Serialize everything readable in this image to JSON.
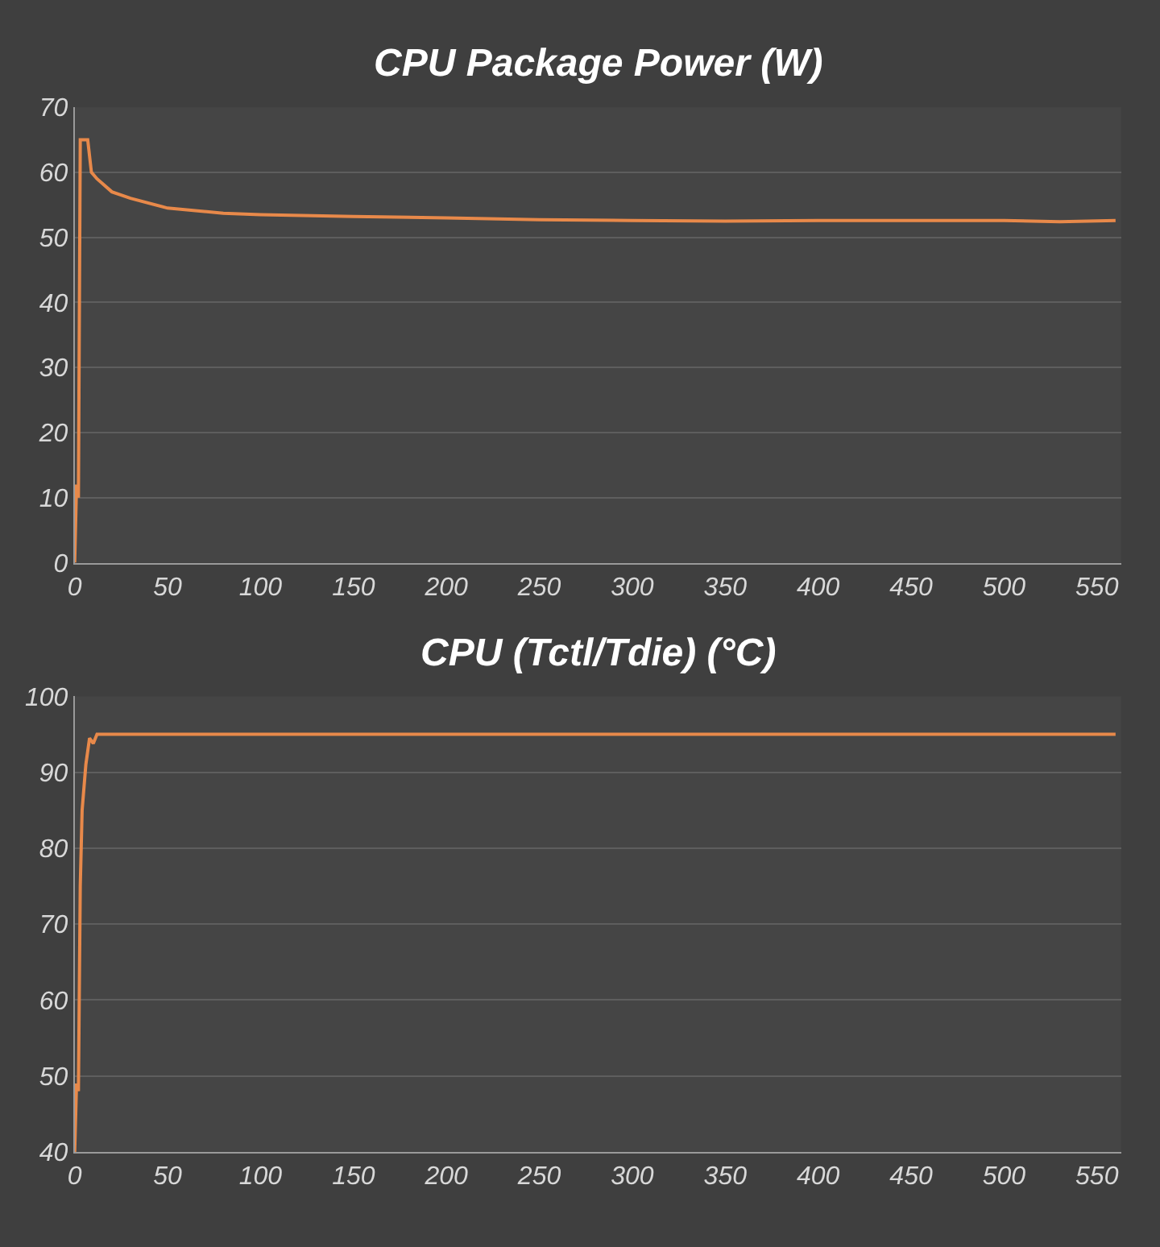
{
  "chart_data": [
    {
      "type": "line",
      "title": "CPU Package Power (W)",
      "x": [
        0,
        1,
        2,
        3,
        7,
        9,
        12,
        20,
        30,
        50,
        80,
        100,
        150,
        200,
        250,
        300,
        350,
        400,
        450,
        500,
        530,
        560
      ],
      "series": [
        {
          "color": "#e8894a",
          "values": [
            0,
            12,
            10,
            65,
            65,
            60,
            59,
            57,
            56,
            54.5,
            53.7,
            53.5,
            53.2,
            53,
            52.7,
            52.6,
            52.5,
            52.6,
            52.6,
            52.6,
            52.4,
            52.6
          ]
        }
      ],
      "xlim": [
        0,
        563
      ],
      "xticks": [
        0,
        50,
        100,
        150,
        200,
        250,
        300,
        350,
        400,
        450,
        500,
        550
      ],
      "ylim": [
        0,
        70
      ],
      "yticks": [
        0,
        10,
        20,
        30,
        40,
        50,
        60,
        70
      ],
      "grid": "y"
    },
    {
      "type": "line",
      "title": "CPU (Tctl/Tdie) (°C)",
      "x": [
        0,
        1,
        2,
        3,
        4,
        6,
        8,
        10,
        12,
        560
      ],
      "series": [
        {
          "color": "#e8894a",
          "values": [
            40,
            49,
            48,
            75,
            85,
            91,
            94.5,
            93.8,
            95,
            95
          ]
        }
      ],
      "xlim": [
        0,
        563
      ],
      "xticks": [
        0,
        50,
        100,
        150,
        200,
        250,
        300,
        350,
        400,
        450,
        500,
        550
      ],
      "ylim": [
        40,
        100
      ],
      "yticks": [
        40,
        50,
        60,
        70,
        80,
        90,
        100
      ],
      "grid": "y"
    }
  ]
}
